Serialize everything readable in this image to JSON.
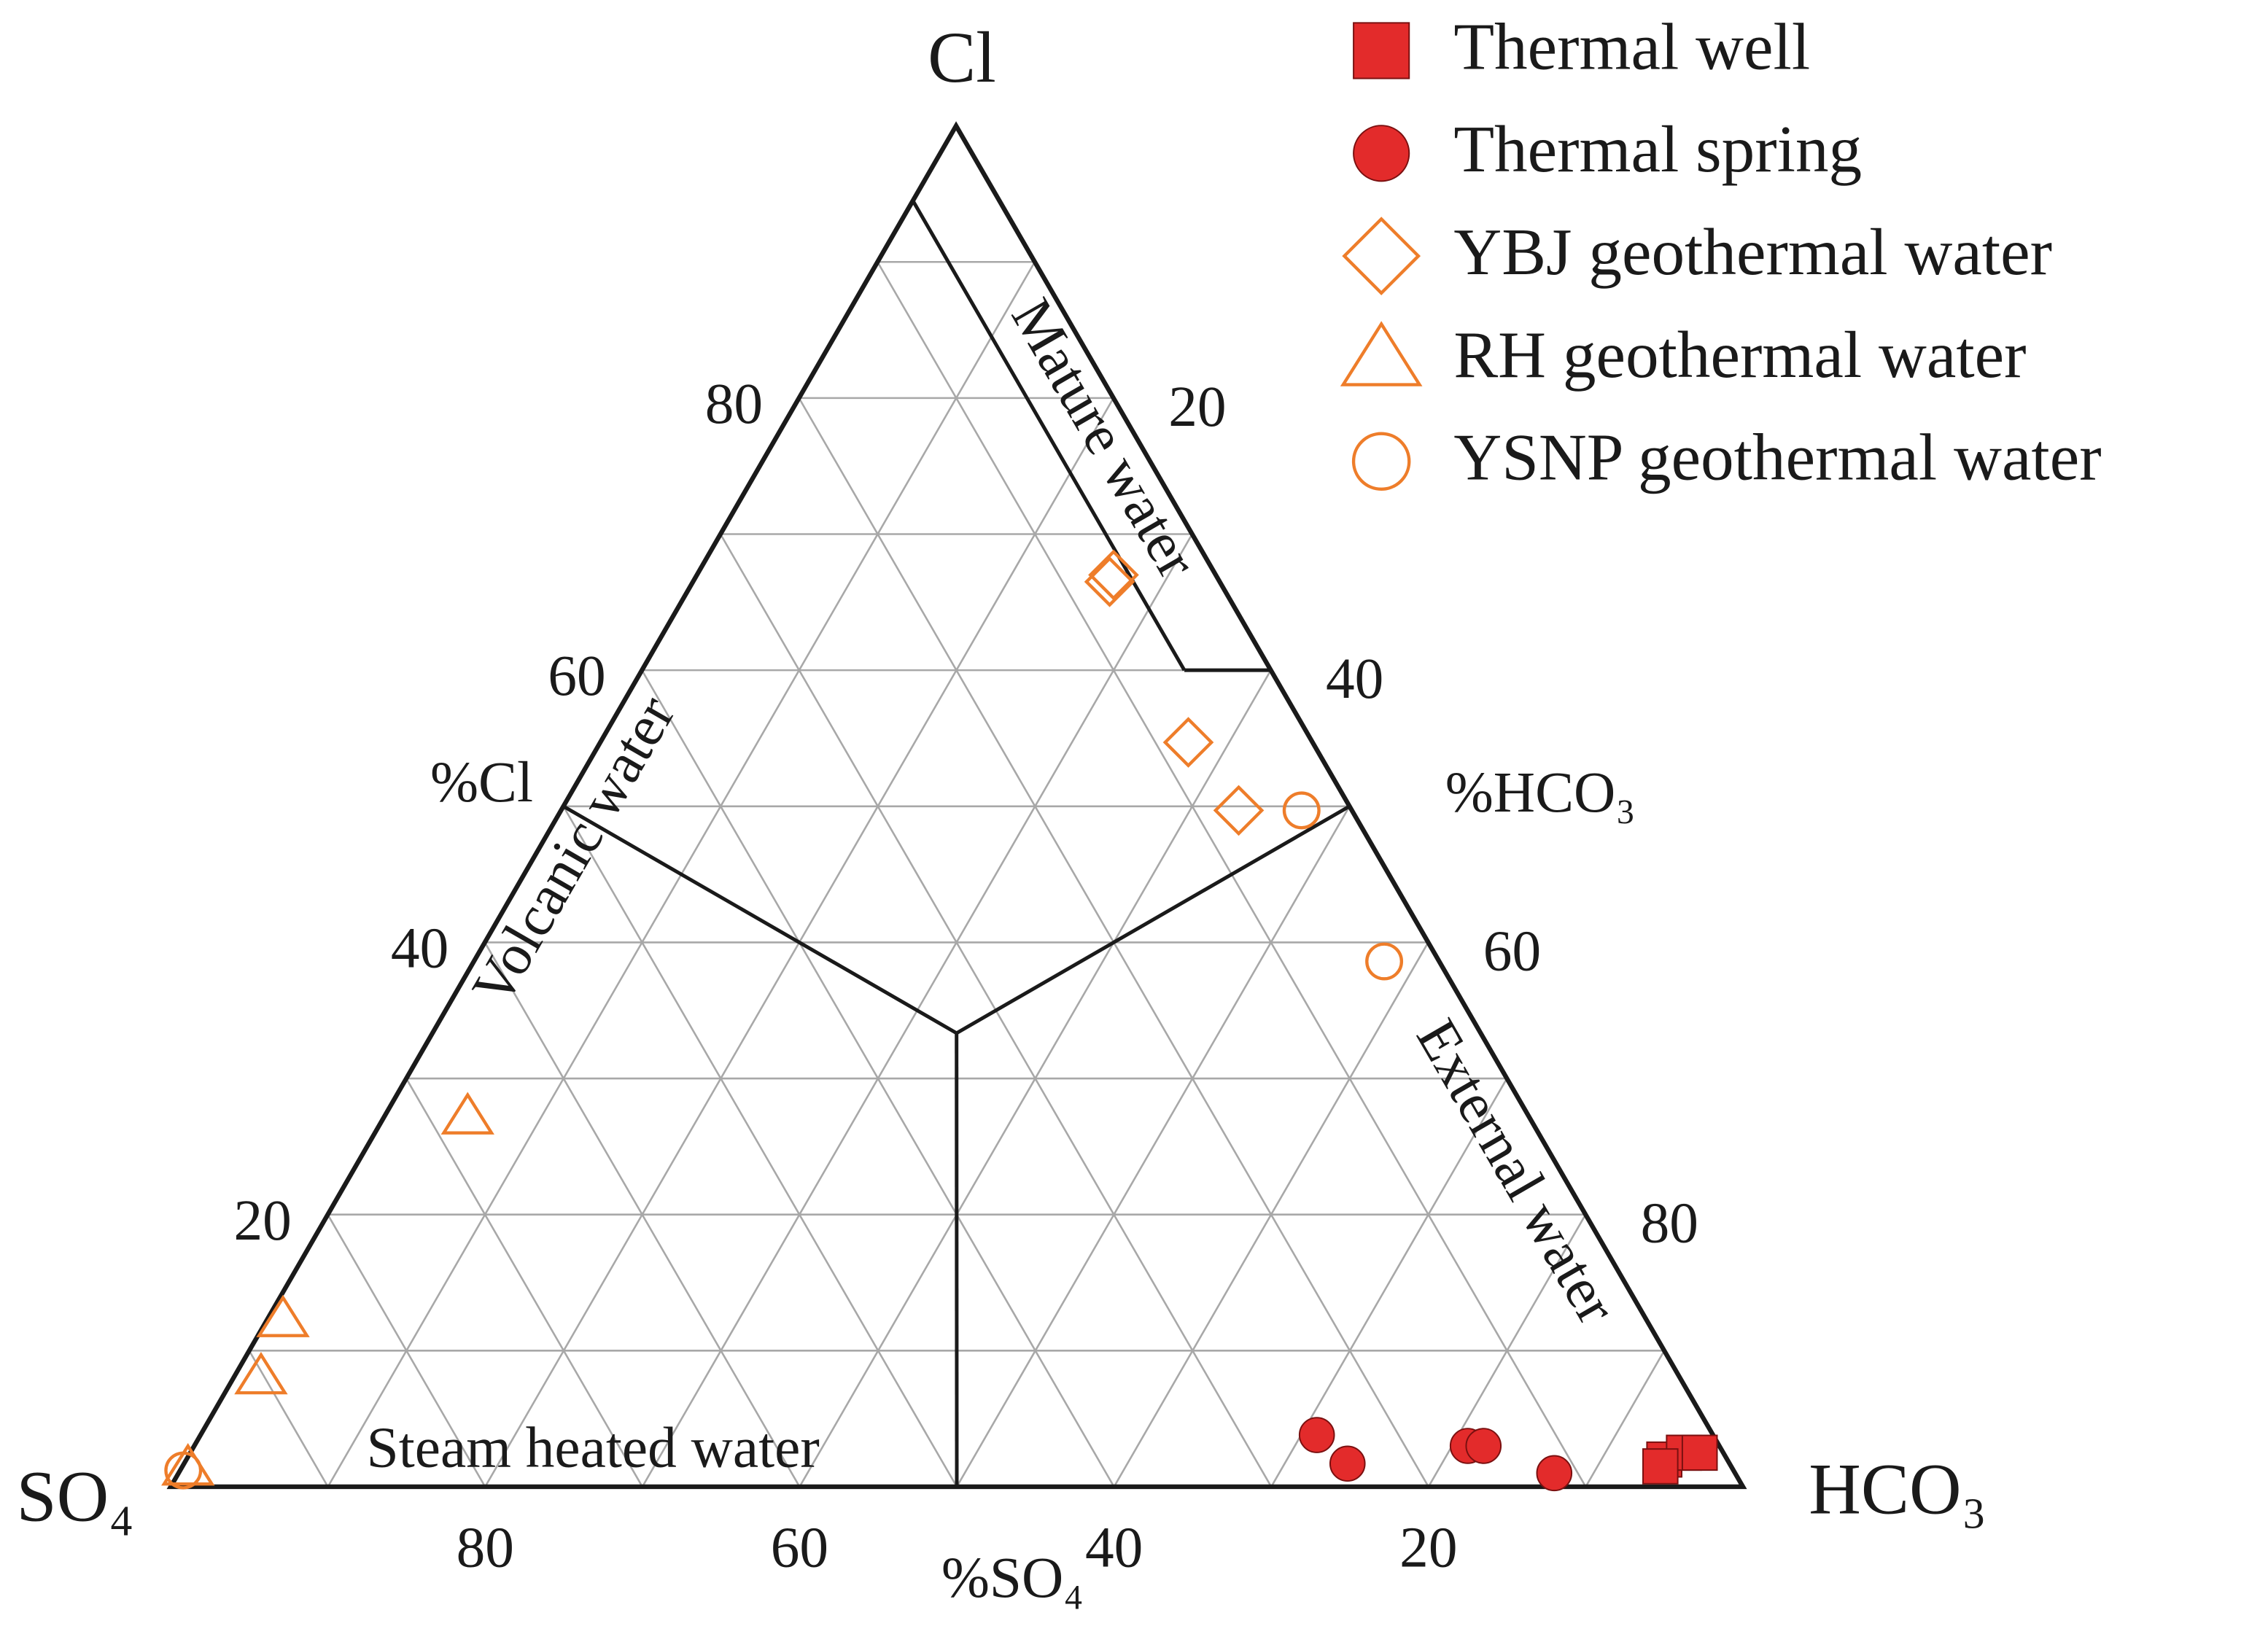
{
  "chart_data": {
    "type": "ternary",
    "axes": {
      "cl": {
        "vertex": "Cl",
        "label": "%Cl",
        "ticks": [
          20,
          40,
          60,
          80
        ]
      },
      "hco3": {
        "vertex": "HCO₃",
        "label": "%HCO₃",
        "ticks": [
          20,
          40,
          60,
          80
        ]
      },
      "so4": {
        "vertex": "SO₄",
        "label": "%SO₄",
        "ticks": [
          20,
          40,
          60,
          80
        ]
      }
    },
    "grid": [
      10,
      20,
      30,
      40,
      50,
      60,
      70,
      80,
      90
    ],
    "regions": [
      "Mature water",
      "Volcanic water",
      "Steam heated water",
      "External water"
    ],
    "series": [
      {
        "name": "Thermal well",
        "color": "#e32b2b",
        "marker": "square",
        "filled": true,
        "cl": [
          2,
          2.5,
          2.5,
          1.5
        ],
        "hco3": [
          94,
          95,
          96,
          94
        ],
        "so4": [
          4,
          2.5,
          1.5,
          4.5
        ]
      },
      {
        "name": "Thermal spring",
        "color": "#e32b2b",
        "marker": "circle",
        "filled": true,
        "cl": [
          3.8,
          1.7,
          3,
          3,
          1
        ],
        "hco3": [
          71,
          74,
          81,
          82,
          87.5
        ],
        "so4": [
          25.2,
          24.3,
          16,
          15,
          11.5
        ]
      },
      {
        "name": "YBJ geothermal water",
        "color": "#ee7d2a",
        "marker": "diamond",
        "filled": false,
        "cl": [
          66.5,
          67,
          54.7,
          49.7
        ],
        "hco3": [
          26.5,
          26.5,
          37.4,
          43.1
        ],
        "so4": [
          7,
          6.5,
          7.9,
          7.2
        ]
      },
      {
        "name": "RH geothermal water",
        "color": "#ee7d2a",
        "marker": "triangle",
        "filled": false,
        "cl": [
          27.2,
          12.3,
          8.1,
          1.4
        ],
        "hco3": [
          5.3,
          1,
          1.7,
          0.4
        ],
        "so4": [
          67.5,
          86.7,
          90.2,
          98.2
        ]
      },
      {
        "name": "YSNP geothermal water",
        "color": "#ee7d2a",
        "marker": "circle",
        "filled": false,
        "cl": [
          49.7,
          38.6,
          1.2
        ],
        "hco3": [
          47.1,
          57.9,
          0.2
        ],
        "so4": [
          3.2,
          3.5,
          98.6
        ]
      }
    ]
  }
}
